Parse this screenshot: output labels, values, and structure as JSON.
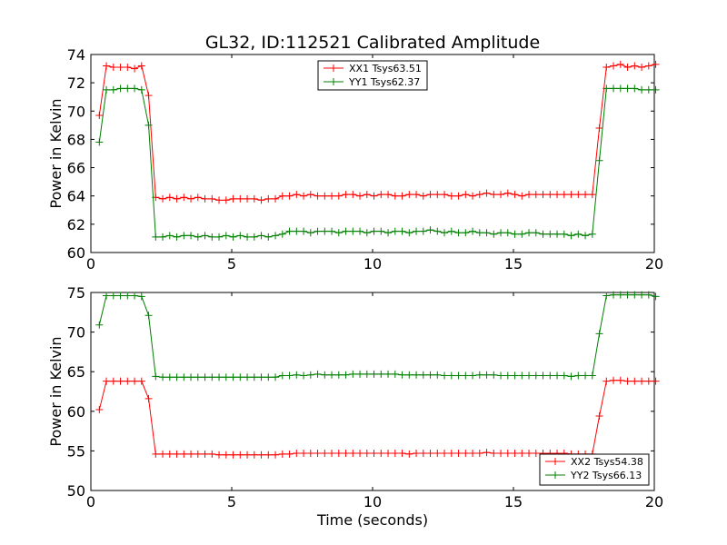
{
  "colors": {
    "red": "#ff0000",
    "green": "#007f00"
  },
  "chart_data": [
    {
      "type": "line",
      "title": "GL32, ID:112521 Calibrated Amplitude",
      "xlabel": "",
      "ylabel": "Power in Kelvin",
      "xlim": [
        0,
        20
      ],
      "ylim": [
        60,
        74
      ],
      "xticks": [
        "0",
        "5",
        "10",
        "15",
        "20"
      ],
      "yticks": [
        "60",
        "62",
        "64",
        "66",
        "68",
        "70",
        "72",
        "74"
      ],
      "legend_position": "top-center",
      "x": [
        0.3,
        0.55,
        0.8,
        1.05,
        1.3,
        1.55,
        1.8,
        2.05,
        2.3,
        2.55,
        2.8,
        3.05,
        3.3,
        3.55,
        3.8,
        4.05,
        4.3,
        4.55,
        4.8,
        5.05,
        5.3,
        5.55,
        5.8,
        6.05,
        6.3,
        6.55,
        6.8,
        7.05,
        7.3,
        7.55,
        7.8,
        8.05,
        8.3,
        8.55,
        8.8,
        9.05,
        9.3,
        9.55,
        9.8,
        10.05,
        10.3,
        10.55,
        10.8,
        11.05,
        11.3,
        11.55,
        11.8,
        12.05,
        12.3,
        12.55,
        12.8,
        13.05,
        13.3,
        13.55,
        13.8,
        14.05,
        14.3,
        14.55,
        14.8,
        15.05,
        15.3,
        15.55,
        15.8,
        16.05,
        16.3,
        16.55,
        16.8,
        17.05,
        17.3,
        17.55,
        17.8,
        18.05,
        18.3,
        18.55,
        18.8,
        19.05,
        19.3,
        19.55,
        19.8,
        20.05
      ],
      "series": [
        {
          "name": "XX1 Tsys63.51",
          "color": "#ff0000",
          "values": [
            69.7,
            73.2,
            73.1,
            73.1,
            73.1,
            73.0,
            73.2,
            71.1,
            63.9,
            63.8,
            63.9,
            63.8,
            63.9,
            63.8,
            63.9,
            63.8,
            63.8,
            63.7,
            63.7,
            63.8,
            63.8,
            63.8,
            63.8,
            63.7,
            63.8,
            63.8,
            64.0,
            64.0,
            64.1,
            64.0,
            64.1,
            64.0,
            64.0,
            64.0,
            64.0,
            64.1,
            64.1,
            64.0,
            64.1,
            64.0,
            64.1,
            64.1,
            64.0,
            64.0,
            64.1,
            64.1,
            64.0,
            64.1,
            64.1,
            64.1,
            64.0,
            64.0,
            64.1,
            64.0,
            64.1,
            64.2,
            64.1,
            64.1,
            64.2,
            64.1,
            64.0,
            64.1,
            64.1,
            64.1,
            64.1,
            64.1,
            64.1,
            64.1,
            64.1,
            64.1,
            64.1,
            68.8,
            73.1,
            73.2,
            73.3,
            73.1,
            73.2,
            73.1,
            73.2,
            73.3
          ]
        },
        {
          "name": "YY1 Tsys62.37",
          "color": "#007f00",
          "values": [
            67.8,
            71.5,
            71.5,
            71.6,
            71.6,
            71.6,
            71.5,
            69.0,
            61.1,
            61.1,
            61.2,
            61.1,
            61.2,
            61.2,
            61.1,
            61.2,
            61.1,
            61.1,
            61.2,
            61.1,
            61.2,
            61.1,
            61.1,
            61.2,
            61.1,
            61.2,
            61.3,
            61.5,
            61.5,
            61.5,
            61.4,
            61.5,
            61.5,
            61.5,
            61.4,
            61.5,
            61.5,
            61.5,
            61.4,
            61.5,
            61.5,
            61.4,
            61.5,
            61.5,
            61.4,
            61.5,
            61.5,
            61.6,
            61.5,
            61.4,
            61.5,
            61.4,
            61.4,
            61.5,
            61.4,
            61.4,
            61.3,
            61.4,
            61.4,
            61.3,
            61.3,
            61.4,
            61.4,
            61.3,
            61.3,
            61.3,
            61.3,
            61.2,
            61.3,
            61.2,
            61.3,
            66.5,
            71.6,
            71.6,
            71.6,
            71.6,
            71.6,
            71.5,
            71.5,
            71.5
          ]
        }
      ]
    },
    {
      "type": "line",
      "title": "",
      "xlabel": "Time (seconds)",
      "ylabel": "Power in Kelvin",
      "xlim": [
        0,
        20
      ],
      "ylim": [
        50,
        75
      ],
      "xticks": [
        "0",
        "5",
        "10",
        "15",
        "20"
      ],
      "yticks": [
        "50",
        "55",
        "60",
        "65",
        "70",
        "75"
      ],
      "legend_position": "bottom-right",
      "x": [
        0.3,
        0.55,
        0.8,
        1.05,
        1.3,
        1.55,
        1.8,
        2.05,
        2.3,
        2.55,
        2.8,
        3.05,
        3.3,
        3.55,
        3.8,
        4.05,
        4.3,
        4.55,
        4.8,
        5.05,
        5.3,
        5.55,
        5.8,
        6.05,
        6.3,
        6.55,
        6.8,
        7.05,
        7.3,
        7.55,
        7.8,
        8.05,
        8.3,
        8.55,
        8.8,
        9.05,
        9.3,
        9.55,
        9.8,
        10.05,
        10.3,
        10.55,
        10.8,
        11.05,
        11.3,
        11.55,
        11.8,
        12.05,
        12.3,
        12.55,
        12.8,
        13.05,
        13.3,
        13.55,
        13.8,
        14.05,
        14.3,
        14.55,
        14.8,
        15.05,
        15.3,
        15.55,
        15.8,
        16.05,
        16.3,
        16.55,
        16.8,
        17.05,
        17.3,
        17.55,
        17.8,
        18.05,
        18.3,
        18.55,
        18.8,
        19.05,
        19.3,
        19.55,
        19.8,
        20.05
      ],
      "series": [
        {
          "name": "XX2 Tsys54.38",
          "color": "#ff0000",
          "values": [
            60.2,
            63.8,
            63.8,
            63.8,
            63.8,
            63.8,
            63.8,
            61.6,
            54.6,
            54.6,
            54.6,
            54.6,
            54.6,
            54.6,
            54.6,
            54.6,
            54.6,
            54.5,
            54.5,
            54.5,
            54.5,
            54.5,
            54.5,
            54.5,
            54.5,
            54.5,
            54.6,
            54.6,
            54.7,
            54.7,
            54.7,
            54.7,
            54.7,
            54.7,
            54.7,
            54.7,
            54.7,
            54.7,
            54.7,
            54.7,
            54.7,
            54.7,
            54.7,
            54.7,
            54.6,
            54.7,
            54.7,
            54.7,
            54.7,
            54.7,
            54.7,
            54.7,
            54.7,
            54.7,
            54.7,
            54.8,
            54.7,
            54.7,
            54.7,
            54.7,
            54.7,
            54.7,
            54.7,
            54.7,
            54.7,
            54.7,
            54.7,
            54.6,
            54.6,
            54.6,
            54.6,
            59.4,
            63.8,
            63.9,
            63.9,
            63.8,
            63.8,
            63.8,
            63.8,
            63.8
          ]
        },
        {
          "name": "YY2 Tsys66.13",
          "color": "#007f00",
          "values": [
            70.9,
            74.6,
            74.6,
            74.6,
            74.6,
            74.6,
            74.5,
            72.1,
            64.4,
            64.3,
            64.3,
            64.3,
            64.3,
            64.3,
            64.3,
            64.3,
            64.3,
            64.3,
            64.3,
            64.3,
            64.3,
            64.3,
            64.3,
            64.3,
            64.3,
            64.3,
            64.5,
            64.5,
            64.6,
            64.5,
            64.6,
            64.7,
            64.6,
            64.6,
            64.6,
            64.6,
            64.7,
            64.7,
            64.7,
            64.7,
            64.7,
            64.7,
            64.7,
            64.6,
            64.6,
            64.6,
            64.6,
            64.6,
            64.6,
            64.5,
            64.5,
            64.5,
            64.5,
            64.5,
            64.6,
            64.6,
            64.6,
            64.5,
            64.5,
            64.5,
            64.5,
            64.5,
            64.5,
            64.5,
            64.5,
            64.5,
            64.5,
            64.4,
            64.5,
            64.5,
            64.5,
            69.8,
            74.6,
            74.7,
            74.7,
            74.7,
            74.7,
            74.7,
            74.7,
            74.5
          ]
        }
      ]
    }
  ]
}
